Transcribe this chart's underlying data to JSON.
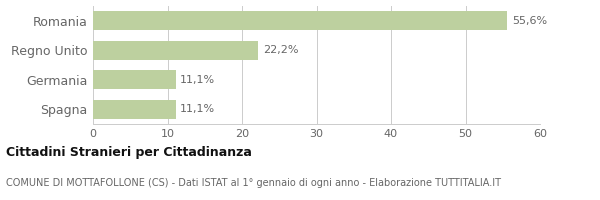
{
  "categories": [
    "Spagna",
    "Germania",
    "Regno Unito",
    "Romania"
  ],
  "values": [
    11.1,
    11.1,
    22.2,
    55.6
  ],
  "labels": [
    "11,1%",
    "11,1%",
    "22,2%",
    "55,6%"
  ],
  "bar_color": "#bdd09f",
  "xlim": [
    0,
    60
  ],
  "xticks": [
    0,
    10,
    20,
    30,
    40,
    50,
    60
  ],
  "title": "Cittadini Stranieri per Cittadinanza",
  "subtitle": "COMUNE DI MOTTAFOLLONE (CS) - Dati ISTAT al 1° gennaio di ogni anno - Elaborazione TUTTITALIA.IT",
  "background_color": "#ffffff",
  "grid_color": "#cccccc",
  "title_fontsize": 9,
  "subtitle_fontsize": 7,
  "label_fontsize": 8,
  "tick_fontsize": 8,
  "ytick_fontsize": 9,
  "text_color": "#666666",
  "title_color": "#111111"
}
